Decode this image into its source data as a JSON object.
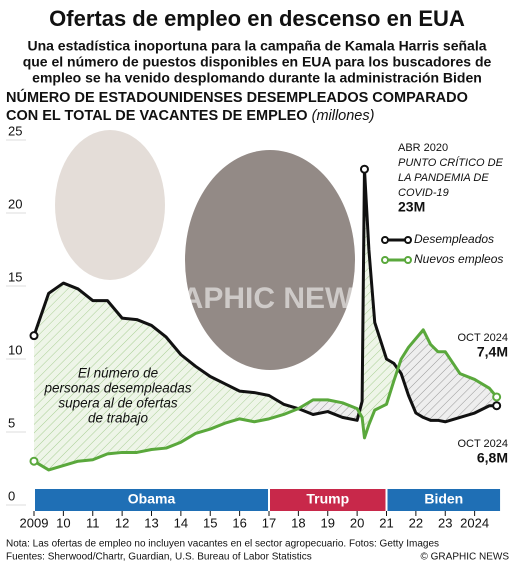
{
  "chart_data": {
    "type": "line",
    "title": "Ofertas de empleo en descenso en EUA",
    "subtitle": [
      "Una estadística inoportuna para la campaña de Kamala Harris señala",
      "que el número de puestos disponibles en EUA para los buscadores de",
      "empleo se ha venido desplomando durante la administración Biden"
    ],
    "y_label": [
      "NÚMERO DE ESTADOUNIDENSES DESEMPLEADOS COMPARADO",
      "CON EL TOTAL DE VACANTES DE EMPLEO"
    ],
    "y_unit": "(millones)",
    "x": [
      2009.0,
      2009.5,
      2010,
      2010.5,
      2011,
      2011.5,
      2012,
      2012.5,
      2013,
      2013.5,
      2014,
      2014.5,
      2015,
      2015.5,
      2016,
      2016.5,
      2017,
      2017.5,
      2018,
      2018.5,
      2019,
      2019.5,
      2020,
      2020.17,
      2020.25,
      2020.4,
      2020.6,
      2021,
      2021.25,
      2021.5,
      2021.75,
      2022,
      2022.25,
      2022.5,
      2022.75,
      2023,
      2023.5,
      2024,
      2024.5,
      2024.75
    ],
    "series": [
      {
        "name": "Desempleados",
        "color": "#111111",
        "values": [
          11.6,
          14.5,
          15.2,
          14.8,
          14.0,
          14.0,
          12.8,
          12.7,
          12.3,
          11.5,
          10.3,
          9.5,
          8.8,
          8.3,
          7.8,
          7.7,
          7.5,
          6.9,
          6.6,
          6.2,
          6.4,
          6.0,
          5.8,
          7.1,
          23.0,
          17.5,
          12.5,
          10.0,
          9.7,
          9.0,
          7.5,
          6.3,
          6.0,
          5.8,
          5.8,
          5.7,
          6.0,
          6.3,
          6.8,
          6.8
        ]
      },
      {
        "name": "Nuevos empleos",
        "color": "#5aa83c",
        "values": [
          3.0,
          2.4,
          2.7,
          3.0,
          3.1,
          3.5,
          3.6,
          3.6,
          3.8,
          3.9,
          4.3,
          4.9,
          5.2,
          5.6,
          5.9,
          5.7,
          5.9,
          6.2,
          6.6,
          7.2,
          7.2,
          7.0,
          6.6,
          6.0,
          4.6,
          5.5,
          6.5,
          6.9,
          8.5,
          10.0,
          10.8,
          11.4,
          12.0,
          11.0,
          10.5,
          10.5,
          9.0,
          8.6,
          8.0,
          7.4
        ]
      }
    ],
    "xlim": [
      2009,
      2025
    ],
    "xticks": [
      2009,
      {
        "value": 2010,
        "label": "10"
      },
      {
        "value": 2011,
        "label": "11"
      },
      {
        "value": 2012,
        "label": "12"
      },
      {
        "value": 2013,
        "label": "13"
      },
      {
        "value": 2014,
        "label": "14"
      },
      {
        "value": 2015,
        "label": "15"
      },
      {
        "value": 2016,
        "label": "16"
      },
      {
        "value": 2017,
        "label": "17"
      },
      {
        "value": 2018,
        "label": "18"
      },
      {
        "value": 2019,
        "label": "19"
      },
      {
        "value": 2020,
        "label": "20"
      },
      {
        "value": 2021,
        "label": "21"
      },
      {
        "value": 2022,
        "label": "22"
      },
      {
        "value": 2023,
        "label": "23"
      },
      {
        "value": 2024,
        "label": "2024"
      }
    ],
    "ylim": [
      0,
      25
    ],
    "yticks": [
      0,
      5,
      10,
      15,
      20,
      25
    ],
    "eras": [
      {
        "name": "Obama",
        "start": 2009,
        "end": 2017,
        "color": "#1f6fb5"
      },
      {
        "name": "Trump",
        "start": 2017,
        "end": 2021,
        "color": "#c8284a"
      },
      {
        "name": "Biden",
        "start": 2021,
        "end": 2024.9,
        "color": "#1f6fb5"
      }
    ],
    "annotations": [
      {
        "lines": [
          "ABR 2020",
          "PUNTO CRÍTICO DE",
          "LA PANDEMIA DE",
          "COVID-19",
          "23M"
        ]
      },
      {
        "lines": [
          "OCT 2024",
          "7,4M"
        ]
      },
      {
        "lines": [
          "OCT 2024",
          "6,8M"
        ]
      },
      {
        "lines": [
          "El número de",
          "personas desempleadas",
          "supera al de ofertas",
          "de trabajo"
        ]
      }
    ],
    "watermark": "GRAPHIC NEWS",
    "note": "Nota: Las ofertas de empleo no incluyen vacantes en el sector agropecuario. Fotos: Getty Images",
    "source": "Fuentes: Sherwood/Chartr, Guardian, U.S. Bureau of Labor Statistics",
    "credit": "© GRAPHIC NEWS"
  }
}
